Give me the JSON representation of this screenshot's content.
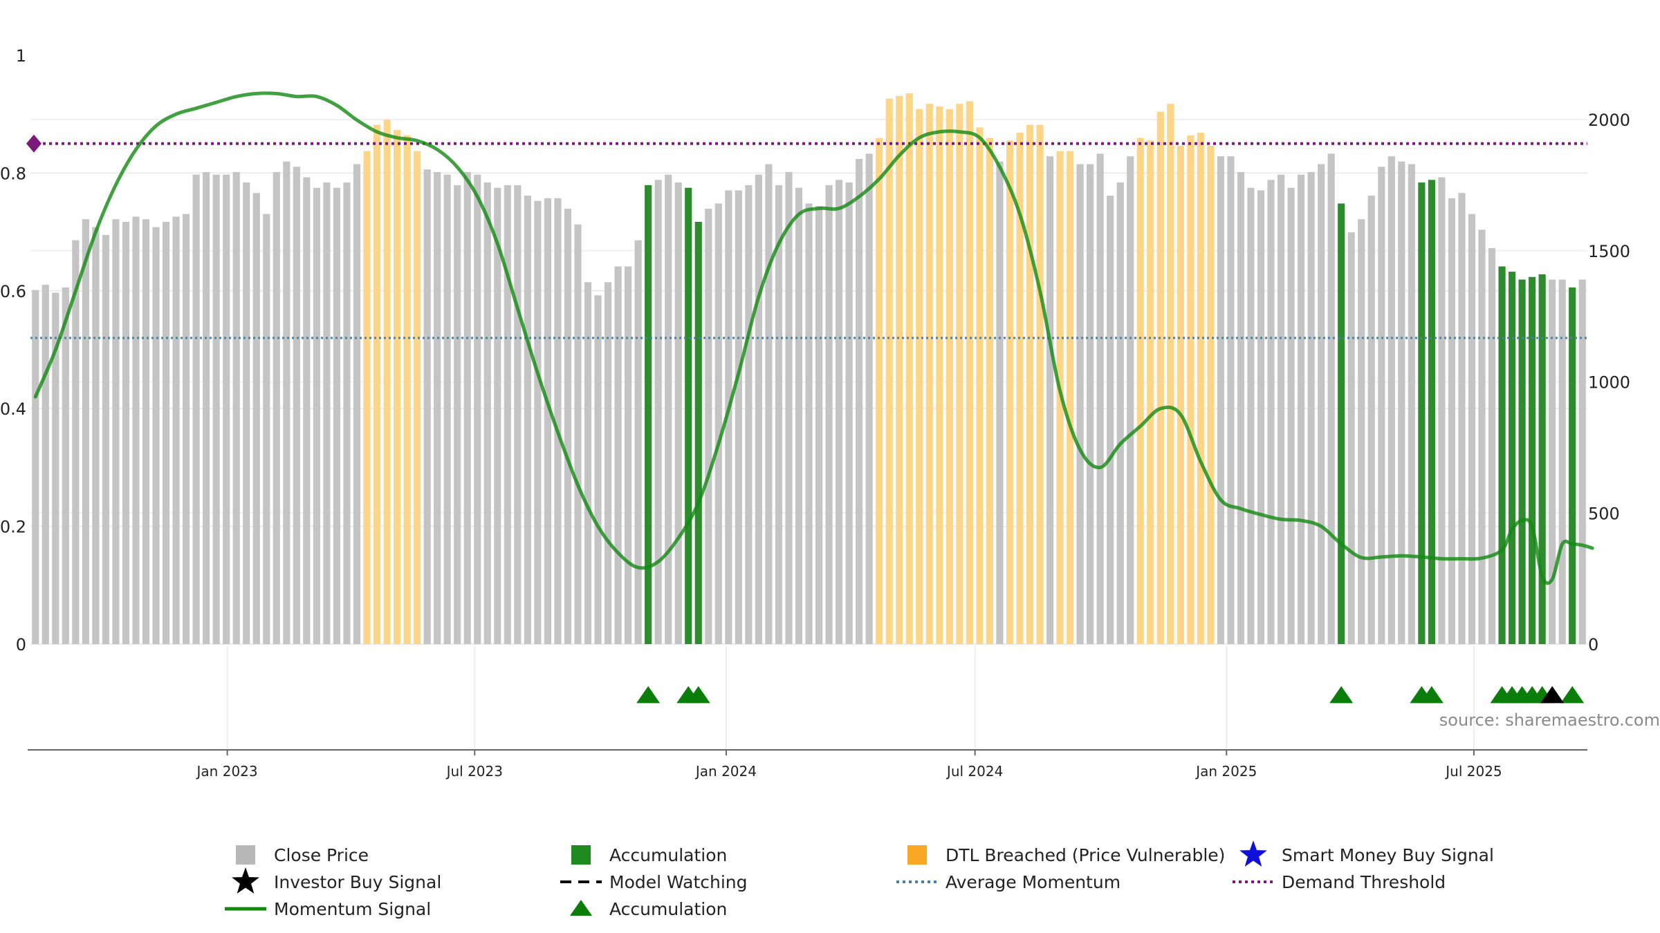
{
  "chart_data": {
    "type": "bar",
    "title": "",
    "xlabel": "",
    "ylabel": "",
    "left_axis": {
      "ylim": [
        0,
        1
      ],
      "ticks": [
        "0",
        "0.2",
        "0.4",
        "0.6",
        "0.8",
        "1"
      ]
    },
    "right_axis": {
      "ylim": [
        0,
        2000
      ],
      "ticks": [
        "0",
        "500",
        "1000",
        "1500",
        "2000"
      ]
    },
    "x_ticks": [
      "Jan 2023",
      "Jul 2023",
      "Jan 2024",
      "Jul 2024",
      "Jan 2025",
      "Jul 2025"
    ],
    "grid": true,
    "colors": {
      "close": "#c4c4c4",
      "accumulation": "#2e8b2e",
      "dtl": "#fcd589",
      "momentum": "#118a11",
      "average": "#4a7fa3",
      "threshold": "#7a1a7a",
      "investor": "#000000",
      "smart": "#1010dd"
    },
    "close_prices": [
      1350,
      1370,
      1340,
      1360,
      1540,
      1620,
      1590,
      1560,
      1620,
      1610,
      1630,
      1620,
      1590,
      1610,
      1630,
      1640,
      1790,
      1800,
      1790,
      1790,
      1800,
      1760,
      1720,
      1640,
      1800,
      1840,
      1820,
      1780,
      1740,
      1760,
      1740,
      1760,
      1830,
      1880,
      1980,
      2000,
      1960,
      1940,
      1880,
      1810,
      1800,
      1790,
      1750,
      1800,
      1790,
      1760,
      1740,
      1750,
      1750,
      1710,
      1690,
      1700,
      1700,
      1660,
      1600,
      1380,
      1330,
      1380,
      1440,
      1440,
      1540,
      1750,
      1770,
      1790,
      1760,
      1740,
      1610,
      1660,
      1680,
      1730,
      1730,
      1750,
      1790,
      1830,
      1750,
      1800,
      1740,
      1680,
      1670,
      1750,
      1770,
      1760,
      1850,
      1870,
      1930,
      2080,
      2090,
      2100,
      2040,
      2060,
      2050,
      2040,
      2060,
      2070,
      1970,
      1930,
      1840,
      1920,
      1950,
      1980,
      1980,
      1860,
      1880,
      1880,
      1830,
      1830,
      1870,
      1710,
      1760,
      1860,
      1930,
      1920,
      2030,
      2060,
      1900,
      1940,
      1950,
      1900,
      1860,
      1860,
      1800,
      1740,
      1730,
      1770,
      1790,
      1740,
      1790,
      1800,
      1830,
      1870,
      1680,
      1570,
      1620,
      1710,
      1820,
      1860,
      1840,
      1830,
      1760,
      1770,
      1780,
      1700,
      1720,
      1640,
      1580,
      1510,
      1440,
      1420,
      1390,
      1400,
      1410,
      1390,
      1390,
      1360,
      1390
    ],
    "bar_category": [
      "c",
      "c",
      "c",
      "c",
      "c",
      "c",
      "c",
      "c",
      "c",
      "c",
      "c",
      "c",
      "c",
      "c",
      "c",
      "c",
      "c",
      "c",
      "c",
      "c",
      "c",
      "c",
      "c",
      "c",
      "c",
      "c",
      "c",
      "c",
      "c",
      "c",
      "c",
      "c",
      "c",
      "d",
      "d",
      "d",
      "d",
      "d",
      "d",
      "c",
      "c",
      "c",
      "c",
      "c",
      "c",
      "c",
      "c",
      "c",
      "c",
      "c",
      "c",
      "c",
      "c",
      "c",
      "c",
      "c",
      "c",
      "c",
      "c",
      "c",
      "c",
      "a",
      "c",
      "c",
      "c",
      "a",
      "a",
      "c",
      "c",
      "c",
      "c",
      "c",
      "c",
      "c",
      "c",
      "c",
      "c",
      "c",
      "c",
      "c",
      "c",
      "c",
      "c",
      "c",
      "d",
      "d",
      "d",
      "d",
      "d",
      "d",
      "d",
      "d",
      "d",
      "d",
      "d",
      "d",
      "c",
      "d",
      "d",
      "d",
      "d",
      "c",
      "d",
      "d",
      "c",
      "c",
      "c",
      "c",
      "c",
      "c",
      "d",
      "d",
      "d",
      "d",
      "d",
      "d",
      "d",
      "d",
      "c",
      "c",
      "c",
      "c",
      "c",
      "c",
      "c",
      "c",
      "c",
      "c",
      "c",
      "c",
      "a",
      "c",
      "c",
      "c",
      "c",
      "c",
      "c",
      "c",
      "a",
      "a",
      "c",
      "c",
      "c",
      "c",
      "c",
      "c",
      "a",
      "a",
      "a",
      "a",
      "a",
      "c",
      "c",
      "a",
      "c",
      "c"
    ],
    "momentum": {
      "x": [
        0,
        2,
        4,
        6,
        8,
        10,
        12,
        14,
        16,
        18,
        20,
        22,
        24,
        26,
        28,
        30,
        32,
        34,
        36,
        38,
        40,
        42,
        44,
        46,
        48,
        50,
        52,
        54,
        56,
        58,
        60,
        62,
        64,
        66,
        68,
        70,
        72,
        74,
        76,
        78,
        80,
        82,
        84,
        86,
        88,
        90,
        92,
        94,
        96,
        98,
        100,
        102,
        104,
        106,
        108,
        110,
        112,
        114,
        116,
        118,
        120,
        122,
        124,
        126,
        128,
        130,
        132,
        134,
        136,
        138,
        140,
        142,
        144,
        146,
        147,
        148,
        149,
        150,
        151,
        152,
        153,
        154,
        155
      ],
      "y": [
        0.42,
        0.5,
        0.6,
        0.7,
        0.78,
        0.84,
        0.88,
        0.9,
        0.91,
        0.92,
        0.93,
        0.935,
        0.935,
        0.93,
        0.93,
        0.915,
        0.89,
        0.87,
        0.86,
        0.855,
        0.84,
        0.81,
        0.76,
        0.68,
        0.57,
        0.46,
        0.36,
        0.27,
        0.2,
        0.155,
        0.13,
        0.14,
        0.18,
        0.24,
        0.34,
        0.46,
        0.59,
        0.68,
        0.73,
        0.74,
        0.74,
        0.76,
        0.79,
        0.83,
        0.86,
        0.87,
        0.87,
        0.86,
        0.81,
        0.73,
        0.6,
        0.43,
        0.33,
        0.3,
        0.34,
        0.37,
        0.4,
        0.39,
        0.31,
        0.245,
        0.23,
        0.22,
        0.212,
        0.21,
        0.2,
        0.17,
        0.147,
        0.148,
        0.15,
        0.148,
        0.145,
        0.145,
        0.146,
        0.16,
        0.195,
        0.21,
        0.2,
        0.115,
        0.11,
        0.17,
        0.17,
        0.168,
        0.163
      ]
    },
    "average_momentum": 0.52,
    "demand_threshold": 0.85,
    "accumulation_markers": [
      61,
      65,
      66,
      130,
      138,
      139,
      146,
      147,
      148,
      149,
      150,
      153
    ],
    "investor_signal_markers": [
      151
    ],
    "legend": [
      {
        "label": "Close Price",
        "kind": "square",
        "color": "#b8b8b8"
      },
      {
        "label": "Accumulation",
        "kind": "square",
        "color": "#1f8a1f"
      },
      {
        "label": "DTL Breached (Price Vulnerable)",
        "kind": "square",
        "color": "#f9a825"
      },
      {
        "label": "Smart Money Buy Signal",
        "kind": "star",
        "color": "#1010dd"
      },
      {
        "label": "Investor Buy Signal",
        "kind": "star",
        "color": "#000000"
      },
      {
        "label": "Model Watching",
        "kind": "dash",
        "color": "#000000"
      },
      {
        "label": "Average Momentum",
        "kind": "dot",
        "color": "#4a7fa3"
      },
      {
        "label": "Demand Threshold",
        "kind": "dot",
        "color": "#7a1a7a"
      },
      {
        "label": "Momentum Signal",
        "kind": "line",
        "color": "#118a11"
      },
      {
        "label": "Accumulation",
        "kind": "triangle",
        "color": "#0a7d0a"
      }
    ],
    "source": "source: sharemaestro.com"
  }
}
